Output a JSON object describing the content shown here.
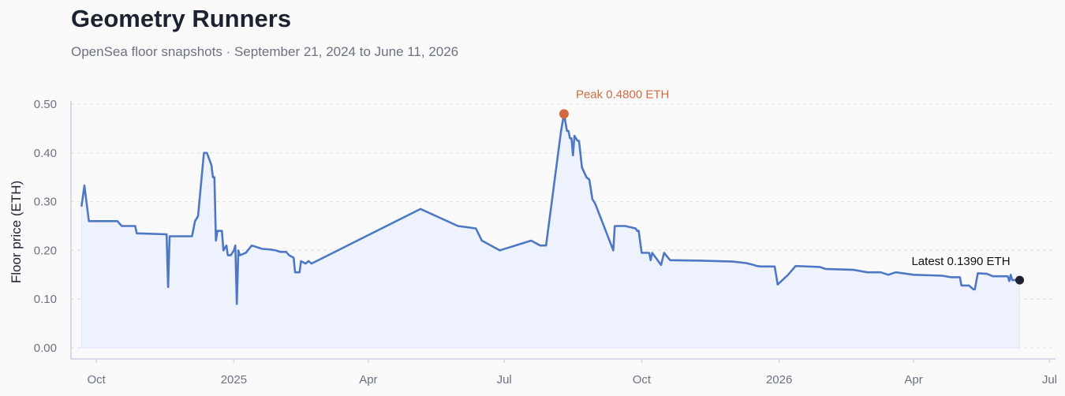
{
  "header": {
    "title": "Geometry Runners",
    "subtitle": "OpenSea floor snapshots · September 21, 2024 to June 11, 2026"
  },
  "chart_data": {
    "type": "area",
    "title": "Geometry Runners",
    "subtitle": "OpenSea floor snapshots · September 21, 2024 to June 11, 2026",
    "xlabel": "",
    "ylabel": "Floor price (ETH)",
    "ylim": [
      0,
      0.5
    ],
    "xlim": [
      "2024-09-14",
      "2026-07-05"
    ],
    "yticks": [
      "0.00",
      "0.10",
      "0.20",
      "0.30",
      "0.40",
      "0.50"
    ],
    "xticks": [
      {
        "date": "2024-10-01",
        "label": "Oct"
      },
      {
        "date": "2025-01-01",
        "label": "2025"
      },
      {
        "date": "2025-04-01",
        "label": "Apr"
      },
      {
        "date": "2025-07-01",
        "label": "Jul"
      },
      {
        "date": "2025-10-01",
        "label": "Oct"
      },
      {
        "date": "2026-01-01",
        "label": "2026"
      },
      {
        "date": "2026-04-01",
        "label": "Apr"
      },
      {
        "date": "2026-07-01",
        "label": "Jul"
      }
    ],
    "grid": true,
    "colors": {
      "line": "#4f78c4",
      "fill": "#eef2fd",
      "peak": "#d2693f",
      "latest": "#1c2230",
      "grid": "#e3e4ee",
      "axis": "#d6d8e6"
    },
    "series": [
      {
        "points": [
          [
            "2024-09-21",
            0.29
          ],
          [
            "2024-09-23",
            0.333
          ],
          [
            "2024-09-26",
            0.26
          ],
          [
            "2024-10-15",
            0.26
          ],
          [
            "2024-10-18",
            0.25
          ],
          [
            "2024-10-27",
            0.25
          ],
          [
            "2024-10-28",
            0.235
          ],
          [
            "2024-11-17",
            0.233
          ],
          [
            "2024-11-18",
            0.125
          ],
          [
            "2024-11-19",
            0.229
          ],
          [
            "2024-12-04",
            0.229
          ],
          [
            "2024-12-06",
            0.26
          ],
          [
            "2024-12-08",
            0.27
          ],
          [
            "2024-12-12",
            0.4
          ],
          [
            "2024-12-14",
            0.4
          ],
          [
            "2024-12-17",
            0.375
          ],
          [
            "2024-12-18",
            0.35
          ],
          [
            "2024-12-19",
            0.35
          ],
          [
            "2024-12-20",
            0.22
          ],
          [
            "2024-12-21",
            0.24
          ],
          [
            "2024-12-24",
            0.24
          ],
          [
            "2024-12-25",
            0.2
          ],
          [
            "2024-12-27",
            0.21
          ],
          [
            "2024-12-28",
            0.19
          ],
          [
            "2024-12-30",
            0.19
          ],
          [
            "2025-01-01",
            0.2
          ],
          [
            "2025-01-02",
            0.21
          ],
          [
            "2025-01-03",
            0.09
          ],
          [
            "2025-01-04",
            0.2
          ],
          [
            "2025-01-05",
            0.19
          ],
          [
            "2025-01-09",
            0.195
          ],
          [
            "2025-01-13",
            0.21
          ],
          [
            "2025-01-20",
            0.203
          ],
          [
            "2025-01-25",
            0.202
          ],
          [
            "2025-01-29",
            0.2
          ],
          [
            "2025-02-01",
            0.197
          ],
          [
            "2025-02-05",
            0.197
          ],
          [
            "2025-02-07",
            0.19
          ],
          [
            "2025-02-10",
            0.185
          ],
          [
            "2025-02-11",
            0.155
          ],
          [
            "2025-02-14",
            0.155
          ],
          [
            "2025-02-15",
            0.178
          ],
          [
            "2025-02-18",
            0.173
          ],
          [
            "2025-02-20",
            0.178
          ],
          [
            "2025-02-22",
            0.173
          ],
          [
            "2025-05-06",
            0.285
          ],
          [
            "2025-05-31",
            0.25
          ],
          [
            "2025-06-12",
            0.245
          ],
          [
            "2025-06-16",
            0.22
          ],
          [
            "2025-06-28",
            0.2
          ],
          [
            "2025-07-19",
            0.22
          ],
          [
            "2025-07-25",
            0.21
          ],
          [
            "2025-07-29",
            0.21
          ],
          [
            "2025-08-08",
            0.445
          ],
          [
            "2025-08-10",
            0.48
          ],
          [
            "2025-08-12",
            0.445
          ],
          [
            "2025-08-13",
            0.445
          ],
          [
            "2025-08-14",
            0.43
          ],
          [
            "2025-08-15",
            0.43
          ],
          [
            "2025-08-16",
            0.395
          ],
          [
            "2025-08-17",
            0.435
          ],
          [
            "2025-08-18",
            0.43
          ],
          [
            "2025-08-19",
            0.425
          ],
          [
            "2025-08-20",
            0.425
          ],
          [
            "2025-08-22",
            0.37
          ],
          [
            "2025-08-25",
            0.35
          ],
          [
            "2025-08-27",
            0.345
          ],
          [
            "2025-08-29",
            0.305
          ],
          [
            "2025-08-31",
            0.295
          ],
          [
            "2025-09-12",
            0.2
          ],
          [
            "2025-09-13",
            0.25
          ],
          [
            "2025-09-20",
            0.25
          ],
          [
            "2025-09-27",
            0.245
          ],
          [
            "2025-09-28",
            0.24
          ],
          [
            "2025-09-29",
            0.24
          ],
          [
            "2025-10-01",
            0.195
          ],
          [
            "2025-10-06",
            0.195
          ],
          [
            "2025-10-07",
            0.18
          ],
          [
            "2025-10-08",
            0.195
          ],
          [
            "2025-10-14",
            0.17
          ],
          [
            "2025-10-16",
            0.195
          ],
          [
            "2025-10-20",
            0.18
          ],
          [
            "2025-11-10",
            0.179
          ],
          [
            "2025-12-01",
            0.177
          ],
          [
            "2025-12-10",
            0.174
          ],
          [
            "2025-12-15",
            0.17
          ],
          [
            "2025-12-17",
            0.168
          ],
          [
            "2025-12-20",
            0.167
          ],
          [
            "2025-12-29",
            0.167
          ],
          [
            "2025-12-31",
            0.13
          ],
          [
            "2026-01-07",
            0.15
          ],
          [
            "2026-01-12",
            0.168
          ],
          [
            "2026-01-28",
            0.166
          ],
          [
            "2026-02-01",
            0.162
          ],
          [
            "2026-02-20",
            0.16
          ],
          [
            "2026-03-01",
            0.155
          ],
          [
            "2026-03-10",
            0.155
          ],
          [
            "2026-03-15",
            0.15
          ],
          [
            "2026-03-20",
            0.155
          ],
          [
            "2026-04-01",
            0.15
          ],
          [
            "2026-04-20",
            0.148
          ],
          [
            "2026-04-26",
            0.145
          ],
          [
            "2026-05-02",
            0.145
          ],
          [
            "2026-05-03",
            0.128
          ],
          [
            "2026-05-08",
            0.128
          ],
          [
            "2026-05-11",
            0.12
          ],
          [
            "2026-05-12",
            0.12
          ],
          [
            "2026-05-14",
            0.153
          ],
          [
            "2026-05-20",
            0.152
          ],
          [
            "2026-05-24",
            0.147
          ],
          [
            "2026-06-03",
            0.147
          ],
          [
            "2026-06-04",
            0.137
          ],
          [
            "2026-06-05",
            0.15
          ],
          [
            "2026-06-06",
            0.139
          ],
          [
            "2026-06-11",
            0.139
          ]
        ]
      }
    ],
    "annotations": {
      "peak": {
        "date": "2025-08-10",
        "value": 0.48,
        "label": "Peak 0.4800 ETH"
      },
      "latest": {
        "date": "2026-06-11",
        "value": 0.139,
        "label": "Latest 0.1390 ETH"
      }
    }
  }
}
